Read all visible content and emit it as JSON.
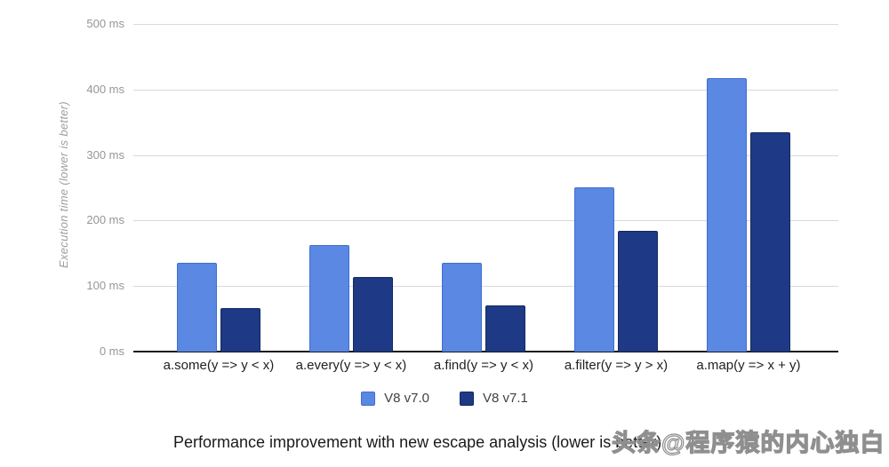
{
  "chart_data": {
    "type": "bar",
    "title": "",
    "caption": "Performance improvement with new escape analysis (lower is better)",
    "ylabel": "Execution time (lower is better)",
    "xlabel": "",
    "categories": [
      "a.some(y => y < x)",
      "a.every(y => y < x)",
      "a.find(y => y < x)",
      "a.filter(y => y > x)",
      "a.map(y => x + y)"
    ],
    "series": [
      {
        "name": "V8 v7.0",
        "color": "#5a88e2",
        "border_color": "#3f6fd0",
        "values": [
          135,
          163,
          136,
          251,
          418
        ]
      },
      {
        "name": "V8 v7.1",
        "color": "#1e3a86",
        "border_color": "#12295f",
        "values": [
          66,
          114,
          70,
          184,
          335
        ]
      }
    ],
    "y_axis": {
      "unit": "ms",
      "ylim": [
        0,
        500
      ],
      "ticks": [
        0,
        100,
        200,
        300,
        400,
        500
      ],
      "tick_labels": [
        "0 ms",
        "100 ms",
        "200 ms",
        "300 ms",
        "400 ms",
        "500 ms"
      ]
    },
    "grid": true,
    "legend_position": "bottom",
    "colors": {
      "background": "#ffffff",
      "gridline": "#d9d9d9",
      "axis_line": "#1a1a1a",
      "tick_text": "#969696",
      "axis_title_text": "#9e9e9e",
      "category_text": "#212121",
      "legend_text": "#424242",
      "caption_text": "#1a1a1a"
    }
  },
  "watermark": {
    "text": "头条@程序猿的内心独白",
    "text_color": "#ffffff",
    "outline_color": "#8f8f8f"
  }
}
